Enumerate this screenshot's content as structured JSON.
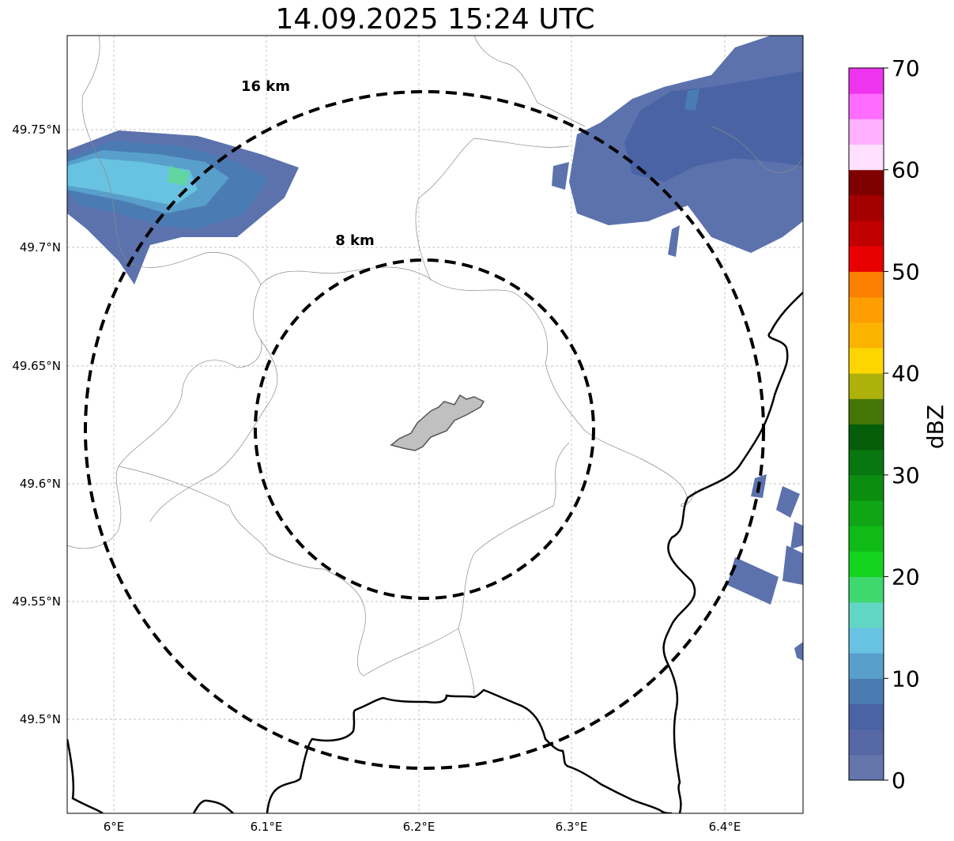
{
  "title": "14.09.2025 15:24 UTC",
  "map": {
    "lon_ticks": [
      "6°E",
      "6.1°E",
      "6.2°E",
      "6.3°E",
      "6.4°E"
    ],
    "lat_ticks": [
      "49.75°N",
      "49.7°N",
      "49.65°N",
      "49.6°N",
      "49.55°N",
      "49.5°N"
    ],
    "rings": [
      {
        "label": "16 km",
        "radius_km": 16
      },
      {
        "label": "8 km",
        "radius_km": 8
      }
    ],
    "center_area_color": "#c0c0c0",
    "border_color": "#000000",
    "grid": true
  },
  "colorbar": {
    "title": "dBZ",
    "tick_labels": [
      "0",
      "10",
      "20",
      "30",
      "40",
      "50",
      "60",
      "70"
    ],
    "colors": [
      "#6476ac",
      "#5667a6",
      "#4963a5",
      "#4a7cb3",
      "#58a0cb",
      "#68c2e1",
      "#62d6c4",
      "#3ed86e",
      "#14d41e",
      "#10bb18",
      "#0fa514",
      "#0b8d10",
      "#097710",
      "#055e09",
      "#447607",
      "#aeb10a",
      "#fdd600",
      "#fcb300",
      "#fe9e00",
      "#fd7f00",
      "#e80000",
      "#c10000",
      "#a40000",
      "#800000",
      "#ffe0ff",
      "#ffb0ff",
      "#ff6cff",
      "#ef34ef"
    ]
  }
}
